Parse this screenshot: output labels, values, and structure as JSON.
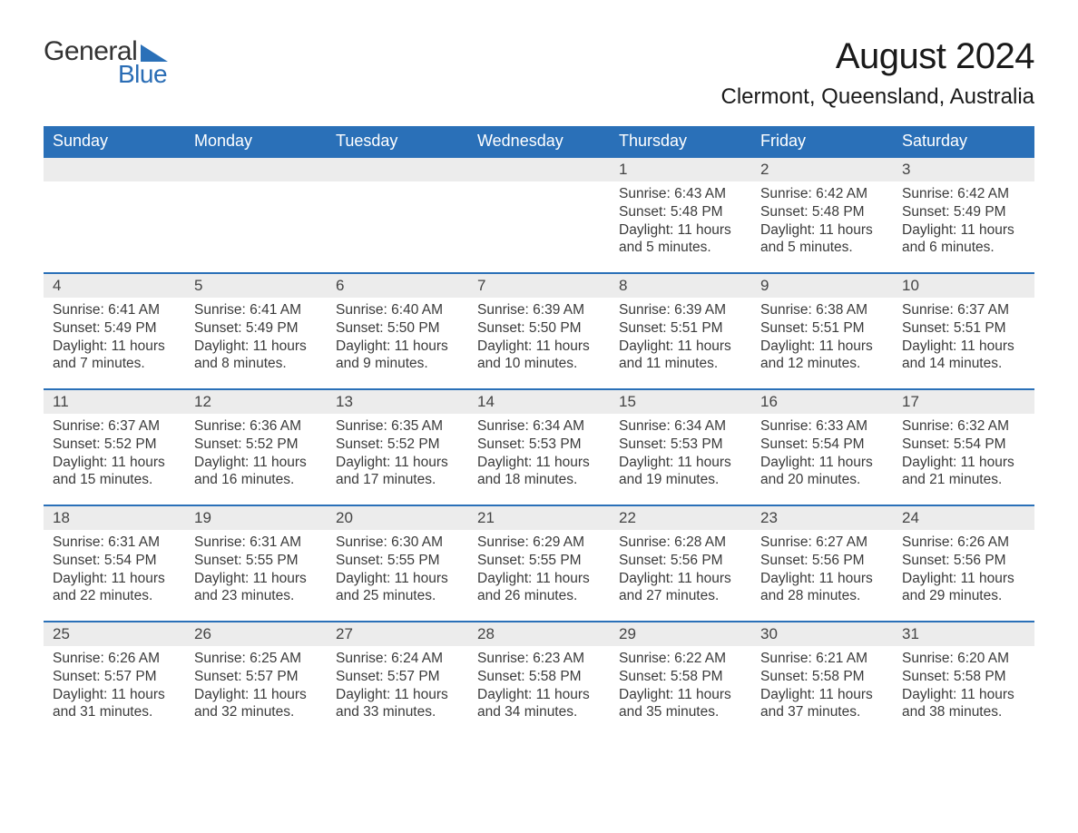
{
  "logo": {
    "word1": "General",
    "word2": "Blue",
    "triangle_color": "#2a70b8"
  },
  "title": "August 2024",
  "subtitle": "Clermont, Queensland, Australia",
  "colors": {
    "header_bg": "#2a70b8",
    "header_text": "#ffffff",
    "daynum_bg": "#ececec",
    "border": "#2a70b8",
    "body_text": "#3a3a3a"
  },
  "weekdays": [
    "Sunday",
    "Monday",
    "Tuesday",
    "Wednesday",
    "Thursday",
    "Friday",
    "Saturday"
  ],
  "weeks": [
    [
      null,
      null,
      null,
      null,
      {
        "n": "1",
        "sunrise": "Sunrise: 6:43 AM",
        "sunset": "Sunset: 5:48 PM",
        "daylight": "Daylight: 11 hours and 5 minutes."
      },
      {
        "n": "2",
        "sunrise": "Sunrise: 6:42 AM",
        "sunset": "Sunset: 5:48 PM",
        "daylight": "Daylight: 11 hours and 5 minutes."
      },
      {
        "n": "3",
        "sunrise": "Sunrise: 6:42 AM",
        "sunset": "Sunset: 5:49 PM",
        "daylight": "Daylight: 11 hours and 6 minutes."
      }
    ],
    [
      {
        "n": "4",
        "sunrise": "Sunrise: 6:41 AM",
        "sunset": "Sunset: 5:49 PM",
        "daylight": "Daylight: 11 hours and 7 minutes."
      },
      {
        "n": "5",
        "sunrise": "Sunrise: 6:41 AM",
        "sunset": "Sunset: 5:49 PM",
        "daylight": "Daylight: 11 hours and 8 minutes."
      },
      {
        "n": "6",
        "sunrise": "Sunrise: 6:40 AM",
        "sunset": "Sunset: 5:50 PM",
        "daylight": "Daylight: 11 hours and 9 minutes."
      },
      {
        "n": "7",
        "sunrise": "Sunrise: 6:39 AM",
        "sunset": "Sunset: 5:50 PM",
        "daylight": "Daylight: 11 hours and 10 minutes."
      },
      {
        "n": "8",
        "sunrise": "Sunrise: 6:39 AM",
        "sunset": "Sunset: 5:51 PM",
        "daylight": "Daylight: 11 hours and 11 minutes."
      },
      {
        "n": "9",
        "sunrise": "Sunrise: 6:38 AM",
        "sunset": "Sunset: 5:51 PM",
        "daylight": "Daylight: 11 hours and 12 minutes."
      },
      {
        "n": "10",
        "sunrise": "Sunrise: 6:37 AM",
        "sunset": "Sunset: 5:51 PM",
        "daylight": "Daylight: 11 hours and 14 minutes."
      }
    ],
    [
      {
        "n": "11",
        "sunrise": "Sunrise: 6:37 AM",
        "sunset": "Sunset: 5:52 PM",
        "daylight": "Daylight: 11 hours and 15 minutes."
      },
      {
        "n": "12",
        "sunrise": "Sunrise: 6:36 AM",
        "sunset": "Sunset: 5:52 PM",
        "daylight": "Daylight: 11 hours and 16 minutes."
      },
      {
        "n": "13",
        "sunrise": "Sunrise: 6:35 AM",
        "sunset": "Sunset: 5:52 PM",
        "daylight": "Daylight: 11 hours and 17 minutes."
      },
      {
        "n": "14",
        "sunrise": "Sunrise: 6:34 AM",
        "sunset": "Sunset: 5:53 PM",
        "daylight": "Daylight: 11 hours and 18 minutes."
      },
      {
        "n": "15",
        "sunrise": "Sunrise: 6:34 AM",
        "sunset": "Sunset: 5:53 PM",
        "daylight": "Daylight: 11 hours and 19 minutes."
      },
      {
        "n": "16",
        "sunrise": "Sunrise: 6:33 AM",
        "sunset": "Sunset: 5:54 PM",
        "daylight": "Daylight: 11 hours and 20 minutes."
      },
      {
        "n": "17",
        "sunrise": "Sunrise: 6:32 AM",
        "sunset": "Sunset: 5:54 PM",
        "daylight": "Daylight: 11 hours and 21 minutes."
      }
    ],
    [
      {
        "n": "18",
        "sunrise": "Sunrise: 6:31 AM",
        "sunset": "Sunset: 5:54 PM",
        "daylight": "Daylight: 11 hours and 22 minutes."
      },
      {
        "n": "19",
        "sunrise": "Sunrise: 6:31 AM",
        "sunset": "Sunset: 5:55 PM",
        "daylight": "Daylight: 11 hours and 23 minutes."
      },
      {
        "n": "20",
        "sunrise": "Sunrise: 6:30 AM",
        "sunset": "Sunset: 5:55 PM",
        "daylight": "Daylight: 11 hours and 25 minutes."
      },
      {
        "n": "21",
        "sunrise": "Sunrise: 6:29 AM",
        "sunset": "Sunset: 5:55 PM",
        "daylight": "Daylight: 11 hours and 26 minutes."
      },
      {
        "n": "22",
        "sunrise": "Sunrise: 6:28 AM",
        "sunset": "Sunset: 5:56 PM",
        "daylight": "Daylight: 11 hours and 27 minutes."
      },
      {
        "n": "23",
        "sunrise": "Sunrise: 6:27 AM",
        "sunset": "Sunset: 5:56 PM",
        "daylight": "Daylight: 11 hours and 28 minutes."
      },
      {
        "n": "24",
        "sunrise": "Sunrise: 6:26 AM",
        "sunset": "Sunset: 5:56 PM",
        "daylight": "Daylight: 11 hours and 29 minutes."
      }
    ],
    [
      {
        "n": "25",
        "sunrise": "Sunrise: 6:26 AM",
        "sunset": "Sunset: 5:57 PM",
        "daylight": "Daylight: 11 hours and 31 minutes."
      },
      {
        "n": "26",
        "sunrise": "Sunrise: 6:25 AM",
        "sunset": "Sunset: 5:57 PM",
        "daylight": "Daylight: 11 hours and 32 minutes."
      },
      {
        "n": "27",
        "sunrise": "Sunrise: 6:24 AM",
        "sunset": "Sunset: 5:57 PM",
        "daylight": "Daylight: 11 hours and 33 minutes."
      },
      {
        "n": "28",
        "sunrise": "Sunrise: 6:23 AM",
        "sunset": "Sunset: 5:58 PM",
        "daylight": "Daylight: 11 hours and 34 minutes."
      },
      {
        "n": "29",
        "sunrise": "Sunrise: 6:22 AM",
        "sunset": "Sunset: 5:58 PM",
        "daylight": "Daylight: 11 hours and 35 minutes."
      },
      {
        "n": "30",
        "sunrise": "Sunrise: 6:21 AM",
        "sunset": "Sunset: 5:58 PM",
        "daylight": "Daylight: 11 hours and 37 minutes."
      },
      {
        "n": "31",
        "sunrise": "Sunrise: 6:20 AM",
        "sunset": "Sunset: 5:58 PM",
        "daylight": "Daylight: 11 hours and 38 minutes."
      }
    ]
  ]
}
